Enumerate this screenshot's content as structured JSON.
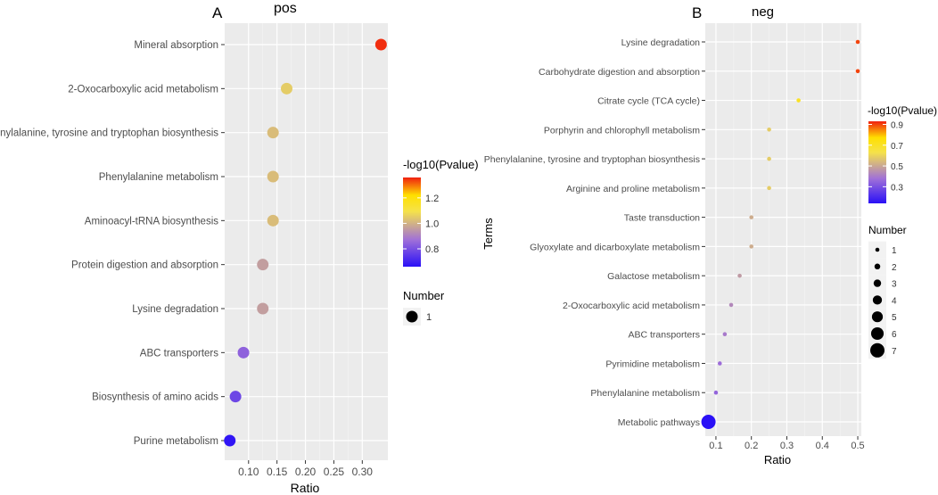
{
  "figure": {
    "panels": [
      "A",
      "B"
    ]
  },
  "chart_data": [
    {
      "type": "scatter",
      "panel_label": "A",
      "title": "pos",
      "xlabel": "Ratio",
      "ylabel": "",
      "xlim": [
        0.058,
        0.345
      ],
      "xticks": [
        0.1,
        0.15,
        0.2,
        0.25,
        0.3
      ],
      "xtick_labels": [
        "0.10",
        "0.15",
        "0.20",
        "0.25",
        "0.30"
      ],
      "grid": true,
      "categories": [
        "Mineral absorption",
        "2-Oxocarboxylic acid metabolism",
        "Phenylalanine, tyrosine and tryptophan biosynthesis",
        "Phenylalanine metabolism",
        "Aminoacyl-tRNA biosynthesis",
        "Protein digestion and absorption",
        "Lysine degradation",
        "ABC transporters",
        "Biosynthesis of amino acids",
        "Purine metabolism"
      ],
      "points": [
        {
          "term": "Mineral absorption",
          "ratio": 0.333,
          "neglog10p": 1.35,
          "number": 1
        },
        {
          "term": "2-Oxocarboxylic acid metabolism",
          "ratio": 0.167,
          "neglog10p": 1.05,
          "number": 1
        },
        {
          "term": "Phenylalanine, tyrosine and tryptophan biosynthesis",
          "ratio": 0.143,
          "neglog10p": 1.02,
          "number": 1
        },
        {
          "term": "Phenylalanine metabolism",
          "ratio": 0.143,
          "neglog10p": 1.02,
          "number": 1
        },
        {
          "term": "Aminoacyl-tRNA biosynthesis",
          "ratio": 0.143,
          "neglog10p": 1.02,
          "number": 1
        },
        {
          "term": "Protein digestion and absorption",
          "ratio": 0.125,
          "neglog10p": 0.96,
          "number": 1
        },
        {
          "term": "Lysine degradation",
          "ratio": 0.125,
          "neglog10p": 0.96,
          "number": 1
        },
        {
          "term": "ABC transporters",
          "ratio": 0.091,
          "neglog10p": 0.84,
          "number": 1
        },
        {
          "term": "Biosynthesis of amino acids",
          "ratio": 0.077,
          "neglog10p": 0.78,
          "number": 1
        },
        {
          "term": "Purine metabolism",
          "ratio": 0.067,
          "neglog10p": 0.67,
          "number": 1
        }
      ],
      "color_legend": {
        "title": "-log10(Pvalue)",
        "min": 0.66,
        "max": 1.36,
        "ticks": [
          0.8,
          1.0,
          1.2
        ],
        "tick_labels": [
          "0.8",
          "1.0",
          "1.2"
        ]
      },
      "size_legend": {
        "title": "Number",
        "values": [
          1
        ],
        "labels": [
          "1"
        ]
      }
    },
    {
      "type": "scatter",
      "panel_label": "B",
      "title": "neg",
      "xlabel": "Ratio",
      "ylabel": "Terms",
      "xlim": [
        0.07,
        0.51
      ],
      "xticks": [
        0.1,
        0.2,
        0.3,
        0.4,
        0.5
      ],
      "xtick_labels": [
        "0.1",
        "0.2",
        "0.3",
        "0.4",
        "0.5"
      ],
      "grid": true,
      "categories": [
        "Lysine degradation",
        "Carbohydrate digestion and absorption",
        "Citrate cycle (TCA cycle)",
        "Porphyrin and chlorophyll metabolism",
        "Phenylalanine, tyrosine and tryptophan biosynthesis",
        "Arginine and proline metabolism",
        "Taste transduction",
        "Glyoxylate and dicarboxylate metabolism",
        "Galactose metabolism",
        "2-Oxocarboxylic acid metabolism",
        "ABC transporters",
        "Pyrimidine metabolism",
        "Phenylalanine metabolism",
        "Metabolic pathways"
      ],
      "points": [
        {
          "term": "Lysine degradation",
          "ratio": 0.5,
          "neglog10p": 0.9,
          "number": 1
        },
        {
          "term": "Carbohydrate digestion and absorption",
          "ratio": 0.5,
          "neglog10p": 0.9,
          "number": 1
        },
        {
          "term": "Citrate cycle (TCA cycle)",
          "ratio": 0.333,
          "neglog10p": 0.7,
          "number": 1
        },
        {
          "term": "Porphyrin and chlorophyll metabolism",
          "ratio": 0.25,
          "neglog10p": 0.58,
          "number": 1
        },
        {
          "term": "Phenylalanine, tyrosine and tryptophan biosynthesis",
          "ratio": 0.25,
          "neglog10p": 0.58,
          "number": 1
        },
        {
          "term": "Arginine and proline metabolism",
          "ratio": 0.25,
          "neglog10p": 0.58,
          "number": 1
        },
        {
          "term": "Taste transduction",
          "ratio": 0.2,
          "neglog10p": 0.51,
          "number": 1
        },
        {
          "term": "Glyoxylate and dicarboxylate metabolism",
          "ratio": 0.2,
          "neglog10p": 0.51,
          "number": 1
        },
        {
          "term": "Galactose metabolism",
          "ratio": 0.167,
          "neglog10p": 0.47,
          "number": 1
        },
        {
          "term": "2-Oxocarboxylic acid metabolism",
          "ratio": 0.143,
          "neglog10p": 0.43,
          "number": 1
        },
        {
          "term": "ABC transporters",
          "ratio": 0.125,
          "neglog10p": 0.4,
          "number": 1
        },
        {
          "term": "Pyrimidine metabolism",
          "ratio": 0.111,
          "neglog10p": 0.37,
          "number": 1
        },
        {
          "term": "Phenylalanine metabolism",
          "ratio": 0.1,
          "neglog10p": 0.35,
          "number": 1
        },
        {
          "term": "Metabolic pathways",
          "ratio": 0.079,
          "neglog10p": 0.14,
          "number": 7
        }
      ],
      "color_legend": {
        "title": "-log10(Pvalue)",
        "min": 0.14,
        "max": 0.93,
        "ticks": [
          0.3,
          0.5,
          0.7,
          0.9
        ],
        "tick_labels": [
          "0.3",
          "0.5",
          "0.7",
          "0.9"
        ]
      },
      "size_legend": {
        "title": "Number",
        "values": [
          1,
          2,
          3,
          4,
          5,
          6,
          7
        ],
        "labels": [
          "1",
          "2",
          "3",
          "4",
          "5",
          "6",
          "7"
        ]
      }
    }
  ]
}
